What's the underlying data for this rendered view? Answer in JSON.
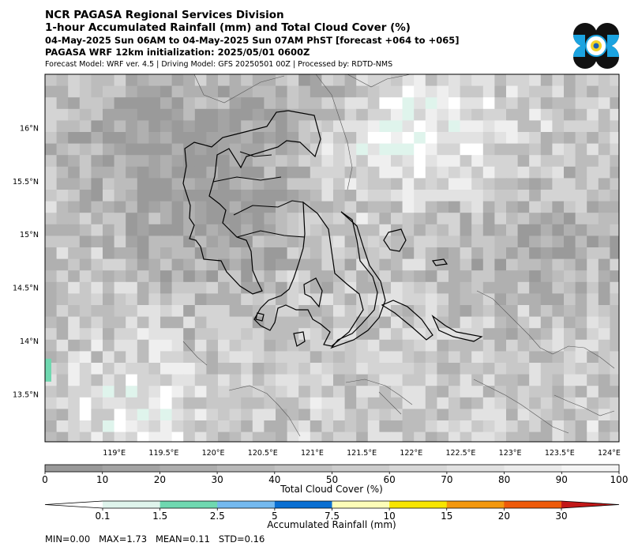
{
  "header": {
    "org": "NCR PAGASA Regional Services Division",
    "title": "1-hour Accumulated Rainfall (mm) and Total Cloud Cover (%)",
    "period": "04-May-2025 Sun 06AM to 04-May-2025 Sun 07AM PhST [forecast +064 to +065]",
    "init": "PAGASA WRF 12km initialization: 2025/05/01 0600Z",
    "model_info": "Forecast Model: WRF ver. 4.5 | Driving Model: GFS 20250501 00Z | Processed by: RDTD-NMS"
  },
  "logo": {
    "name": "PAGASA seal",
    "text": "PAGASA"
  },
  "chart_data": {
    "type": "heatmap",
    "title": "1-hour Accumulated Rainfall (mm) and Total Cloud Cover (%)",
    "x_ticks": [
      "119°E",
      "119.5°E",
      "120°E",
      "120.5°E",
      "121°E",
      "121.5°E",
      "122°E",
      "122.5°E",
      "123°E",
      "123.5°E",
      "124°E"
    ],
    "x_values": [
      119,
      119.5,
      120,
      120.5,
      121,
      121.5,
      122,
      122.5,
      123,
      123.5,
      124
    ],
    "y_ticks": [
      "16°N",
      "15.5°N",
      "15°N",
      "14.5°N",
      "14°N",
      "13.5°N"
    ],
    "y_values": [
      16,
      15.5,
      15,
      14.5,
      14,
      13.5
    ],
    "xlim": [
      118.3,
      124.1
    ],
    "ylim": [
      13.05,
      16.5
    ],
    "cloud_colorbar": {
      "label": "Total Cloud Cover (%)",
      "ticks": [
        "0",
        "10",
        "20",
        "30",
        "40",
        "50",
        "60",
        "70",
        "80",
        "90",
        "100"
      ],
      "colors": [
        "#999999",
        "#a3a3a3",
        "#adadad",
        "#b8b8b8",
        "#c2c2c2",
        "#cccccc",
        "#d7d7d7",
        "#e1e1e1",
        "#ebebeb",
        "#f5f5f5"
      ]
    },
    "rain_colorbar": {
      "label": "Accumulated Rainfall (mm)",
      "ticks": [
        "0.1",
        "1.5",
        "2.5",
        "5",
        "7.5",
        "10",
        "15",
        "20",
        "30"
      ],
      "colors": [
        "#ffffff",
        "#dff4ec",
        "#6fd8b0",
        "#74b9ef",
        "#0a6fd2",
        "#fdfdb8",
        "#f7e500",
        "#f3980e",
        "#ee5a0a",
        "#c21818"
      ]
    },
    "stats": {
      "min": "0.00",
      "max": "1.73",
      "mean": "0.11",
      "std": "0.16"
    }
  },
  "stats_line": "MIN=0.00   MAX=1.73   MEAN=0.11   STD=0.16"
}
